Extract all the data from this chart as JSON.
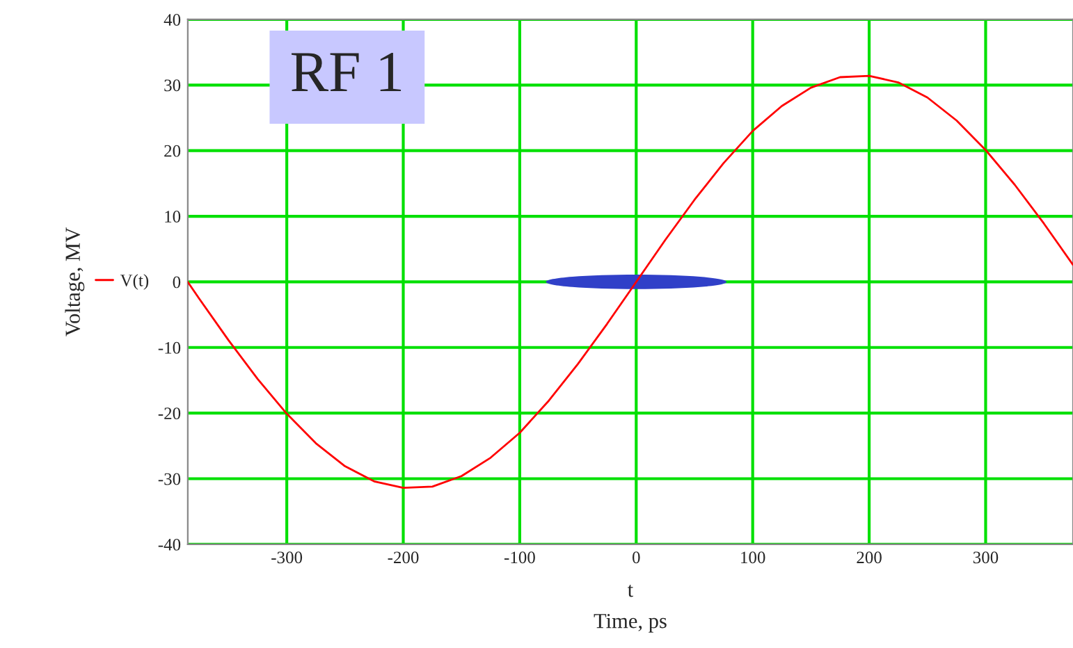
{
  "chart_data": {
    "type": "line",
    "title": "RF 1",
    "xlabel": "Time, ps",
    "ylabel": "Voltage, MV",
    "annotations": [
      "t"
    ],
    "x": [
      -385,
      -375,
      -350,
      -325,
      -300,
      -275,
      -250,
      -225,
      -200,
      -175,
      -150,
      -125,
      -100,
      -75,
      -50,
      -25,
      0,
      25,
      50,
      75,
      100,
      125,
      150,
      175,
      200,
      225,
      250,
      275,
      300,
      325,
      350,
      375
    ],
    "series": [
      {
        "name": "V(t)",
        "color": "#ff0000",
        "values": [
          0,
          -2.6,
          -8.9,
          -14.8,
          -20.1,
          -24.6,
          -28.1,
          -30.4,
          -31.4,
          -31.2,
          -29.6,
          -26.8,
          -23.0,
          -18.1,
          -12.5,
          -6.4,
          0,
          6.4,
          12.5,
          18.1,
          23.0,
          26.8,
          29.6,
          31.2,
          31.4,
          30.4,
          28.1,
          24.6,
          20.1,
          14.8,
          8.9,
          2.6
        ]
      }
    ],
    "xlim": [
      -385,
      375
    ],
    "ylim": [
      -40,
      40
    ],
    "xticks": [
      -300,
      -200,
      -100,
      0,
      100,
      200,
      300
    ],
    "yticks": [
      -40,
      -30,
      -20,
      -10,
      0,
      10,
      20,
      30,
      40
    ],
    "grid": true,
    "legend": "left",
    "line_style": "solid",
    "marker": "none"
  }
}
